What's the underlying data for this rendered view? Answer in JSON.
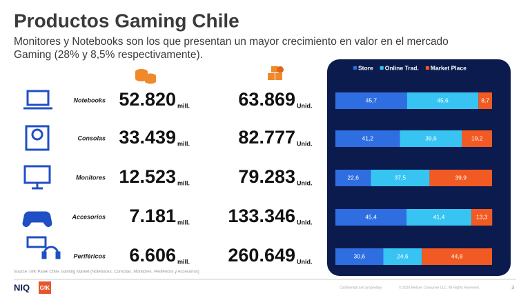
{
  "header": {
    "title": "Productos Gaming Chile",
    "subtitle_lines": [
      "Monitores y Notebooks son los que presentan un mayor crecimiento en valor en el mercado",
      "Gaming (28% y 8,5% respectivamente)."
    ]
  },
  "table": {
    "value_unit": "mill.",
    "units_unit": "Unid.",
    "rows": [
      [
        "52.820",
        "63.869"
      ],
      [
        "33.439",
        "82.777"
      ],
      [
        "12.523",
        "79.283"
      ],
      [
        "7.181",
        "133.346"
      ],
      [
        "6.606",
        "260.649"
      ]
    ]
  },
  "chart_data": {
    "type": "bar",
    "orientation": "horizontal",
    "stacked": true,
    "categories": [
      "Notebooks",
      "Consolas",
      "Monitores",
      "Accesorios",
      "Periféricos"
    ],
    "xlim": [
      0,
      100
    ],
    "series": [
      {
        "name": "Store",
        "color": "#2f6ee0",
        "values": [
          45.7,
          41.2,
          22.6,
          45.4,
          30.6
        ],
        "value_labels": [
          "45,7",
          "41,2",
          "22,6",
          "45,4",
          "30,6"
        ]
      },
      {
        "name": "Online Trad.",
        "color": "#37c4f2",
        "values": [
          45.6,
          39.6,
          37.5,
          41.4,
          24.6
        ],
        "value_labels": [
          "45,6",
          "39,6",
          "37,5",
          "41,4",
          "24,6"
        ]
      },
      {
        "name": "Market Place",
        "color": "#f15a22",
        "values": [
          8.7,
          19.2,
          39.9,
          13.3,
          44.8
        ],
        "value_labels": [
          "8,7",
          "19,2",
          "39,9",
          "13,3",
          "44,8"
        ]
      }
    ]
  },
  "footer": {
    "source": "Source: GfK Panel Chile. Gaming Market (Notebooks, Consolas, Monitores,  Periféricos y Accesorios)",
    "brand1": "NIQ",
    "brand2": "GfK",
    "confidential": "Confidential and proprietary",
    "copyright": "© 2024 Nielsen Consumer LLC. All Rights Reserved.",
    "page": "3"
  }
}
